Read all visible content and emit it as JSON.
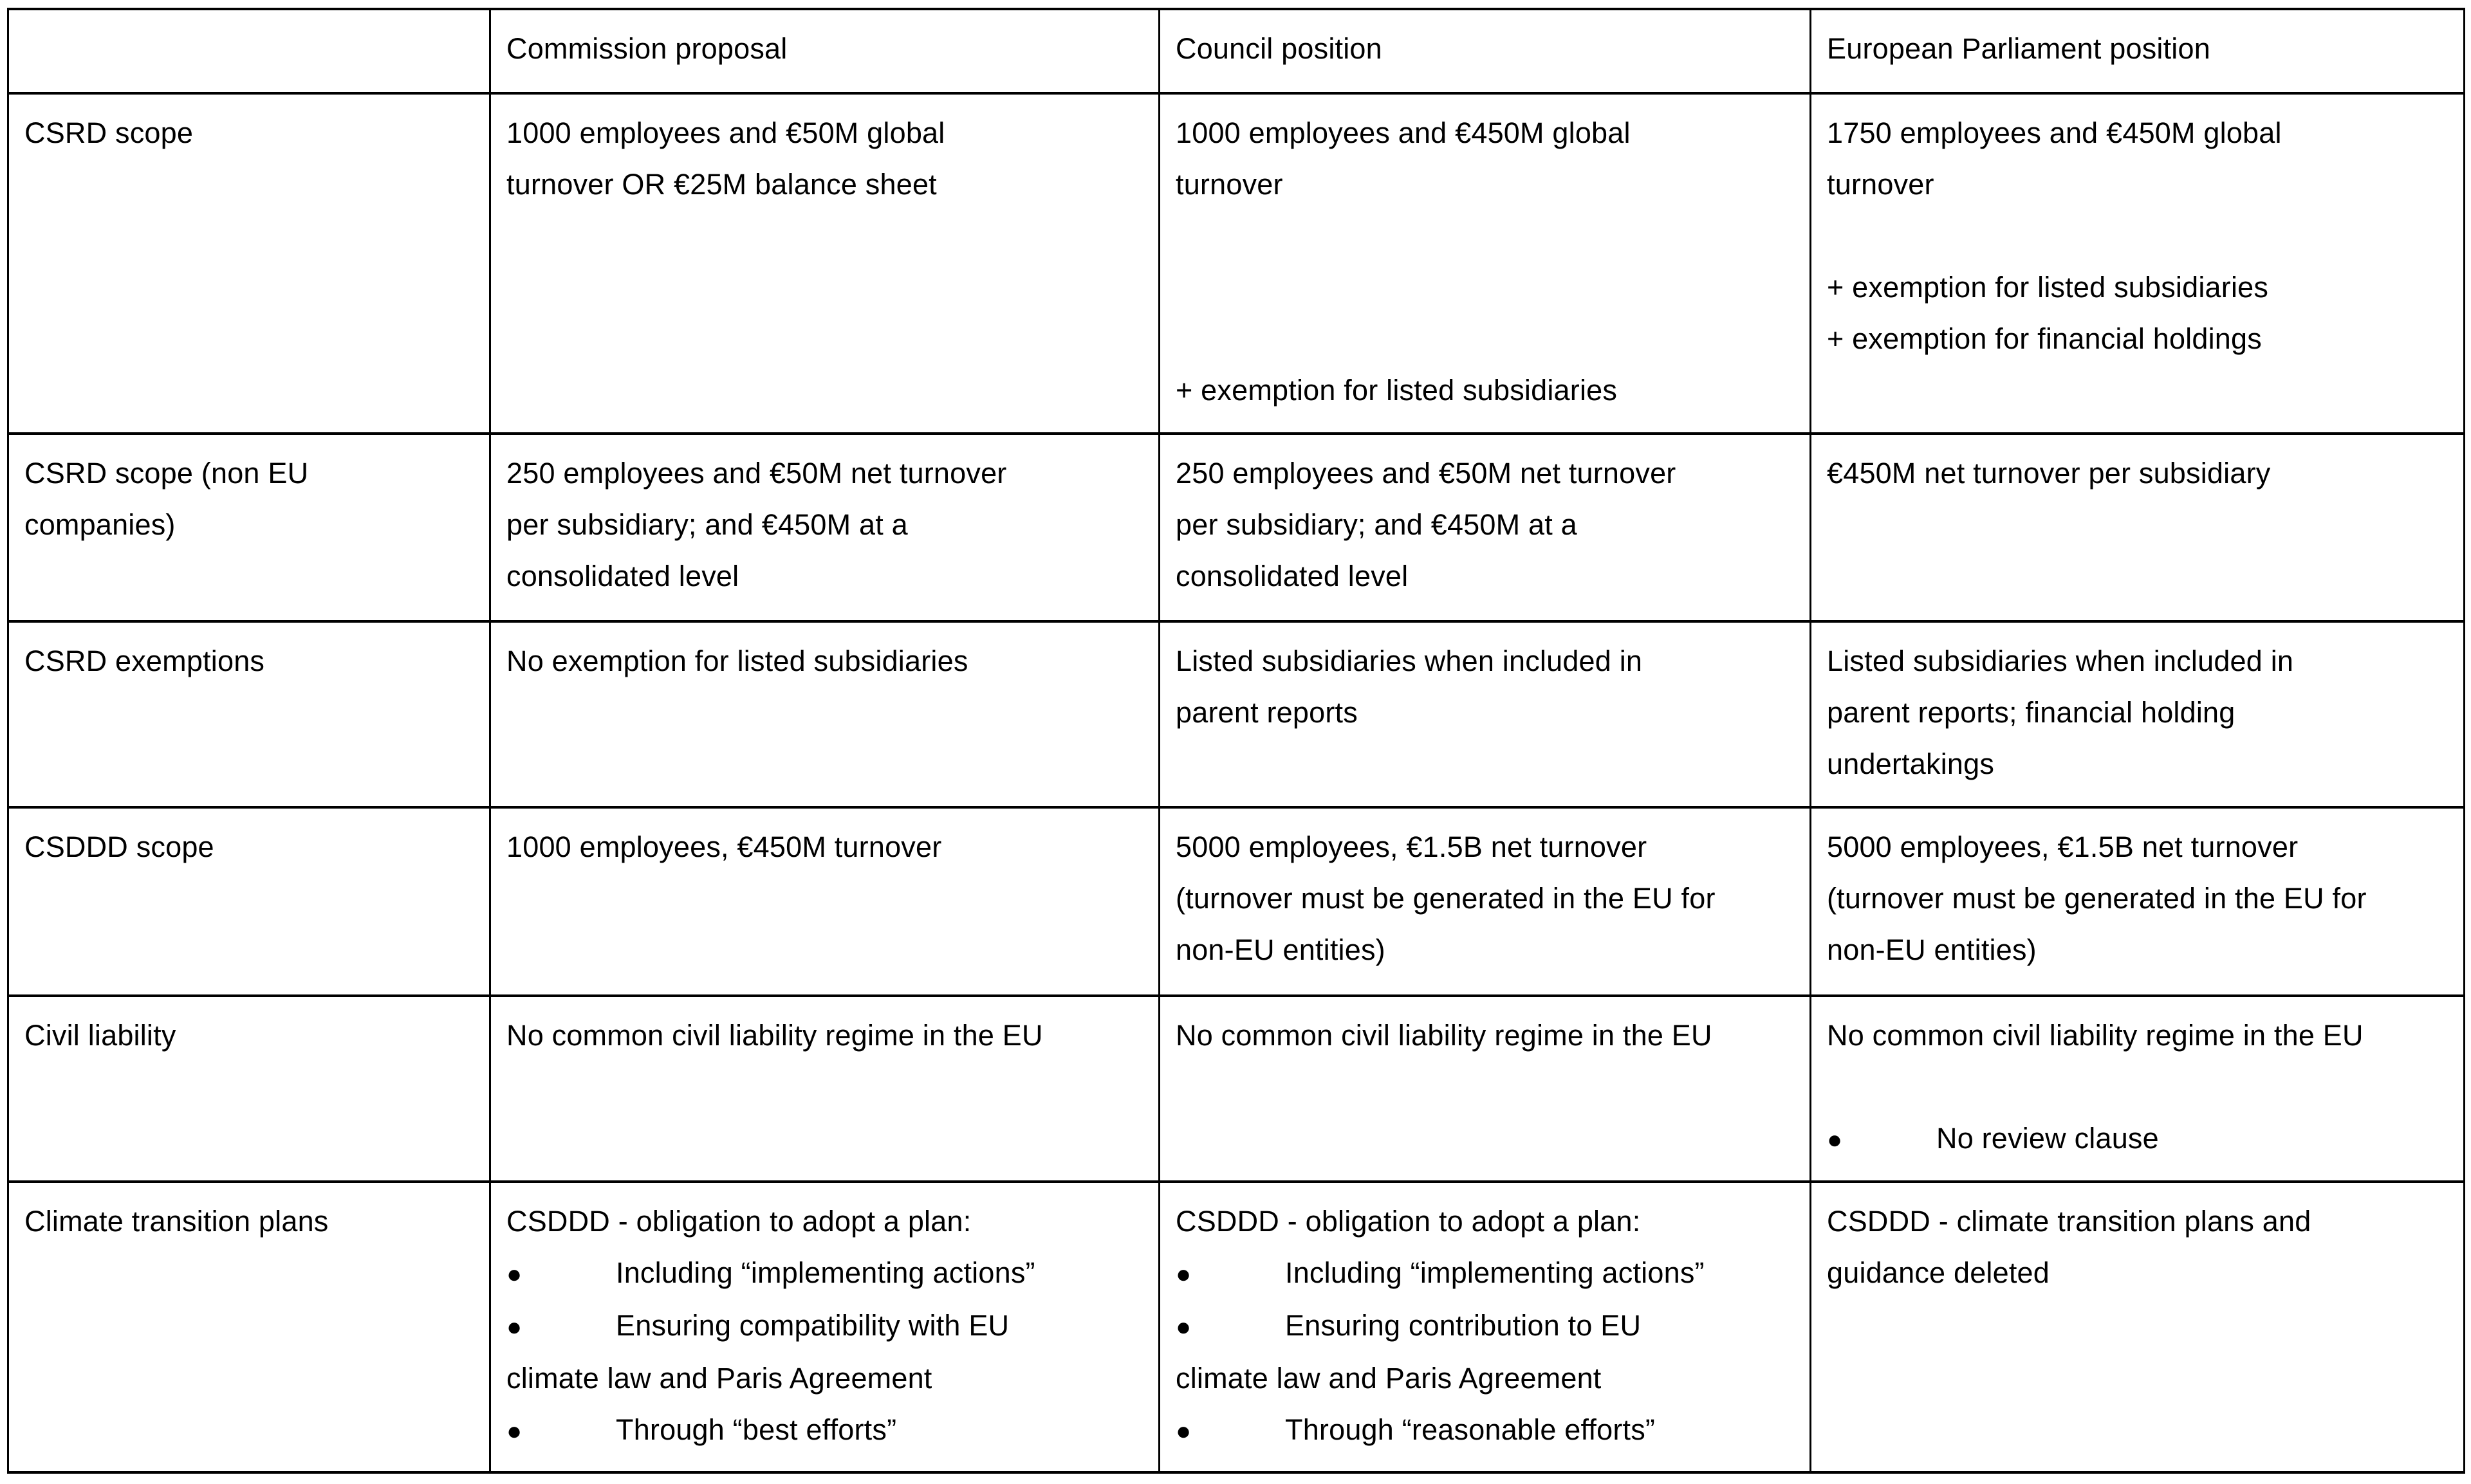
{
  "page": {
    "background": "#ffffff",
    "text_color": "#000000",
    "border_color": "#000000"
  },
  "table": {
    "bullet_char": "●",
    "columns": [
      {
        "header": ""
      },
      {
        "header": "Commission proposal"
      },
      {
        "header": "Council position"
      },
      {
        "header": "European Parliament position"
      }
    ],
    "rows": [
      {
        "label_lines": [
          "CSRD scope"
        ],
        "commission": [
          {
            "type": "text",
            "text": "1000 employees and €50M global"
          },
          {
            "type": "text",
            "text": "turnover OR €25M balance sheet"
          }
        ],
        "council": [
          {
            "type": "text",
            "text": "1000 employees and €450M global"
          },
          {
            "type": "text",
            "text": "turnover"
          },
          {
            "type": "blank"
          },
          {
            "type": "blank"
          },
          {
            "type": "blank"
          },
          {
            "type": "text",
            "text": "+ exemption for listed subsidiaries"
          }
        ],
        "parliament": [
          {
            "type": "text",
            "text": "1750 employees and €450M global"
          },
          {
            "type": "text",
            "text": "turnover"
          },
          {
            "type": "blank"
          },
          {
            "type": "text",
            "text": "+ exemption for listed subsidiaries"
          },
          {
            "type": "text",
            "text": "+ exemption for financial holdings"
          }
        ]
      },
      {
        "label_lines": [
          "CSRD scope (non EU",
          "companies)"
        ],
        "commission": [
          {
            "type": "text",
            "text": "250 employees and €50M net turnover"
          },
          {
            "type": "text",
            "text": "per subsidiary; and €450M at a"
          },
          {
            "type": "text",
            "text": "consolidated level"
          }
        ],
        "council": [
          {
            "type": "text",
            "text": "250 employees and €50M net turnover"
          },
          {
            "type": "text",
            "text": "per subsidiary; and €450M at a"
          },
          {
            "type": "text",
            "text": "consolidated level"
          }
        ],
        "parliament": [
          {
            "type": "text",
            "text": "€450M net turnover per subsidiary"
          }
        ]
      },
      {
        "label_lines": [
          "CSRD exemptions"
        ],
        "commission": [
          {
            "type": "text",
            "text": "No exemption for listed subsidiaries"
          }
        ],
        "council": [
          {
            "type": "text",
            "text": "Listed subsidiaries when included in"
          },
          {
            "type": "text",
            "text": "parent reports"
          }
        ],
        "parliament": [
          {
            "type": "text",
            "text": "Listed subsidiaries when included in"
          },
          {
            "type": "text",
            "text": "parent reports; financial holding"
          },
          {
            "type": "text",
            "text": "undertakings"
          }
        ]
      },
      {
        "label_lines": [
          "CSDDD scope"
        ],
        "commission": [
          {
            "type": "text",
            "text": "1000 employees, €450M turnover"
          }
        ],
        "council": [
          {
            "type": "text",
            "text": "5000 employees, €1.5B net turnover"
          },
          {
            "type": "text",
            "text": "(turnover must be generated in the EU for"
          },
          {
            "type": "text",
            "text": "non-EU entities)"
          }
        ],
        "parliament": [
          {
            "type": "text",
            "text": "5000 employees, €1.5B net turnover"
          },
          {
            "type": "text",
            "text": "(turnover must be generated in the EU for"
          },
          {
            "type": "text",
            "text": "non-EU entities)"
          }
        ]
      },
      {
        "label_lines": [
          "Civil liability"
        ],
        "commission": [
          {
            "type": "text",
            "text": "No common civil liability regime in the EU"
          }
        ],
        "council": [
          {
            "type": "text",
            "text": "No common civil liability regime in the EU"
          }
        ],
        "parliament": [
          {
            "type": "text",
            "text": "No common civil liability regime in the EU"
          },
          {
            "type": "blank"
          },
          {
            "type": "bullet",
            "text": "No review clause"
          }
        ]
      },
      {
        "label_lines": [
          "Climate transition plans"
        ],
        "commission": [
          {
            "type": "text",
            "text": "CSDDD - obligation to adopt a plan:"
          },
          {
            "type": "bullet",
            "text": "Including “implementing actions”"
          },
          {
            "type": "bullet",
            "text": "Ensuring compatibility with EU"
          },
          {
            "type": "text",
            "text": "climate law and Paris Agreement"
          },
          {
            "type": "bullet",
            "text": "Through “best efforts”"
          }
        ],
        "council": [
          {
            "type": "text",
            "text": "CSDDD - obligation to adopt a plan:"
          },
          {
            "type": "bullet",
            "text": "Including “implementing actions”"
          },
          {
            "type": "bullet",
            "text": "Ensuring contribution to EU"
          },
          {
            "type": "text",
            "text": "climate law and Paris Agreement"
          },
          {
            "type": "bullet",
            "text": "Through “reasonable efforts”"
          }
        ],
        "parliament": [
          {
            "type": "text",
            "text": "CSDDD - climate transition plans and"
          },
          {
            "type": "text",
            "text": "guidance deleted"
          }
        ]
      }
    ]
  }
}
